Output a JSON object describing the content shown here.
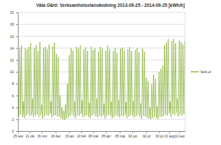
{
  "chart_data": {
    "type": "line",
    "title": "Väla Gård: Verksamhetselanvändning 2013-09-25 - 2014-09-25 [kWh/h]",
    "x": [
      0,
      2,
      4,
      6,
      8,
      10,
      12,
      14,
      16,
      18,
      20,
      22,
      24,
      26,
      28,
      30,
      32,
      34,
      36,
      38,
      40,
      42,
      44,
      46,
      48,
      50,
      52,
      54,
      56,
      58,
      60,
      62,
      64,
      66,
      68,
      70,
      72,
      74,
      76,
      78,
      80,
      82,
      84,
      86,
      88,
      90,
      92,
      94,
      96,
      98,
      100,
      102,
      104,
      106,
      108,
      110,
      112,
      114,
      116,
      118,
      120,
      122,
      124,
      126,
      128,
      130,
      132,
      134,
      136,
      138,
      140,
      142,
      144,
      146,
      148,
      150,
      152,
      154,
      156,
      158,
      160,
      162,
      164,
      166,
      168,
      170,
      172,
      174,
      176,
      178,
      180,
      182,
      184,
      186,
      188,
      190,
      192,
      194,
      196,
      198,
      200,
      202,
      204,
      206,
      208,
      210,
      212,
      214,
      216,
      218,
      220,
      222,
      224,
      226,
      228,
      230,
      232,
      234,
      236,
      238,
      240,
      242,
      244,
      246,
      248,
      250,
      252,
      254,
      256,
      258,
      260,
      262,
      264,
      266,
      268,
      270,
      272,
      274,
      276,
      278,
      280,
      282,
      284,
      286,
      288,
      290,
      292,
      294,
      296,
      298,
      300,
      302,
      304,
      306,
      308,
      310,
      312,
      314,
      316,
      318,
      320,
      322,
      324,
      326,
      328,
      330,
      332,
      334,
      336,
      338,
      340,
      342,
      344,
      346,
      348,
      350,
      352,
      354,
      356,
      358,
      360,
      362,
      364
    ],
    "series": [
      {
        "name": "Verk.el",
        "color": "#8cb43c",
        "values": [
          13.5,
          2.5,
          14,
          2.8,
          14.5,
          2.4,
          5,
          2.2,
          14,
          2.6,
          13.8,
          2.9,
          14.2,
          2.5,
          14.8,
          2.7,
          5.5,
          2.3,
          14,
          2.6,
          14.5,
          2.8,
          13.5,
          2.4,
          15,
          2.7,
          4.5,
          2.1,
          14,
          2.5,
          14.2,
          2.8,
          13.8,
          2.6,
          14.6,
          2.9,
          5,
          2.3,
          14.3,
          2.6,
          14.9,
          2.7,
          13,
          2.5,
          12.5,
          2.4,
          6,
          2.2,
          4,
          2,
          3.5,
          1.9,
          4.5,
          2.1,
          8,
          2.3,
          12.8,
          2.6,
          14,
          2.8,
          13.6,
          2.5,
          5,
          2.2,
          14.2,
          2.7,
          13.9,
          2.6,
          14.5,
          2.9,
          5.2,
          2.3,
          13.8,
          2.5,
          14.1,
          2.7,
          13.5,
          2.4,
          4.8,
          2.2,
          14.3,
          2.6,
          13.7,
          2.8,
          14,
          2.5,
          5.5,
          2.3,
          13.4,
          2.6,
          14.2,
          2.4,
          13.9,
          2.7,
          4.6,
          2.1,
          13.6,
          2.5,
          14.4,
          2.8,
          13.8,
          2.6,
          5,
          2.2,
          13.5,
          2.4,
          14,
          2.7,
          13.2,
          2.5,
          5.3,
          2.3,
          13.9,
          2.6,
          14.1,
          2.5,
          13.6,
          2.8,
          4.9,
          2.2,
          13.8,
          2.4,
          14.2,
          2.7,
          13.5,
          2.6,
          5.1,
          2.3,
          13.7,
          2.5,
          14,
          2.8,
          13.3,
          2.4,
          4.7,
          2.1,
          13.9,
          2.6,
          13.4,
          2.5,
          9,
          2.3,
          8.5,
          2.1,
          4,
          2,
          8,
          2.2,
          9.5,
          2.4,
          8.8,
          2.2,
          4.2,
          2,
          10,
          2.5,
          10.5,
          2.4,
          11,
          2.6,
          14.5,
          2.8,
          15,
          2.6,
          15.5,
          3,
          5,
          2.4,
          15.2,
          2.9,
          15.6,
          2.7,
          14.8,
          3.1,
          5.5,
          2.5,
          15.3,
          2.8,
          15,
          2.6,
          14.6,
          2.9,
          15.2
        ]
      }
    ],
    "xlim": [
      0,
      365
    ],
    "xticks": [
      {
        "value": 0,
        "label": "25 sep"
      },
      {
        "value": 26,
        "label": "21 okt"
      },
      {
        "value": 52,
        "label": "16 nov"
      },
      {
        "value": 82,
        "label": "16 dec"
      },
      {
        "value": 112,
        "label": "15 jan"
      },
      {
        "value": 138,
        "label": "10 feb"
      },
      {
        "value": 164,
        "label": "08 mar"
      },
      {
        "value": 192,
        "label": "05 apr"
      },
      {
        "value": 222,
        "label": "05 maj"
      },
      {
        "value": 250,
        "label": "02 jun"
      },
      {
        "value": 280,
        "label": "02 jul"
      },
      {
        "value": 308,
        "label": "30 jul"
      },
      {
        "value": 330,
        "label": "21 aug"
      },
      {
        "value": 352,
        "label": "12 sep"
      }
    ],
    "ylim": [
      0,
      20
    ],
    "yticks": [
      0,
      2,
      4,
      6,
      8,
      10,
      12,
      14,
      16,
      18,
      20
    ],
    "grid": true,
    "legend": "right"
  }
}
